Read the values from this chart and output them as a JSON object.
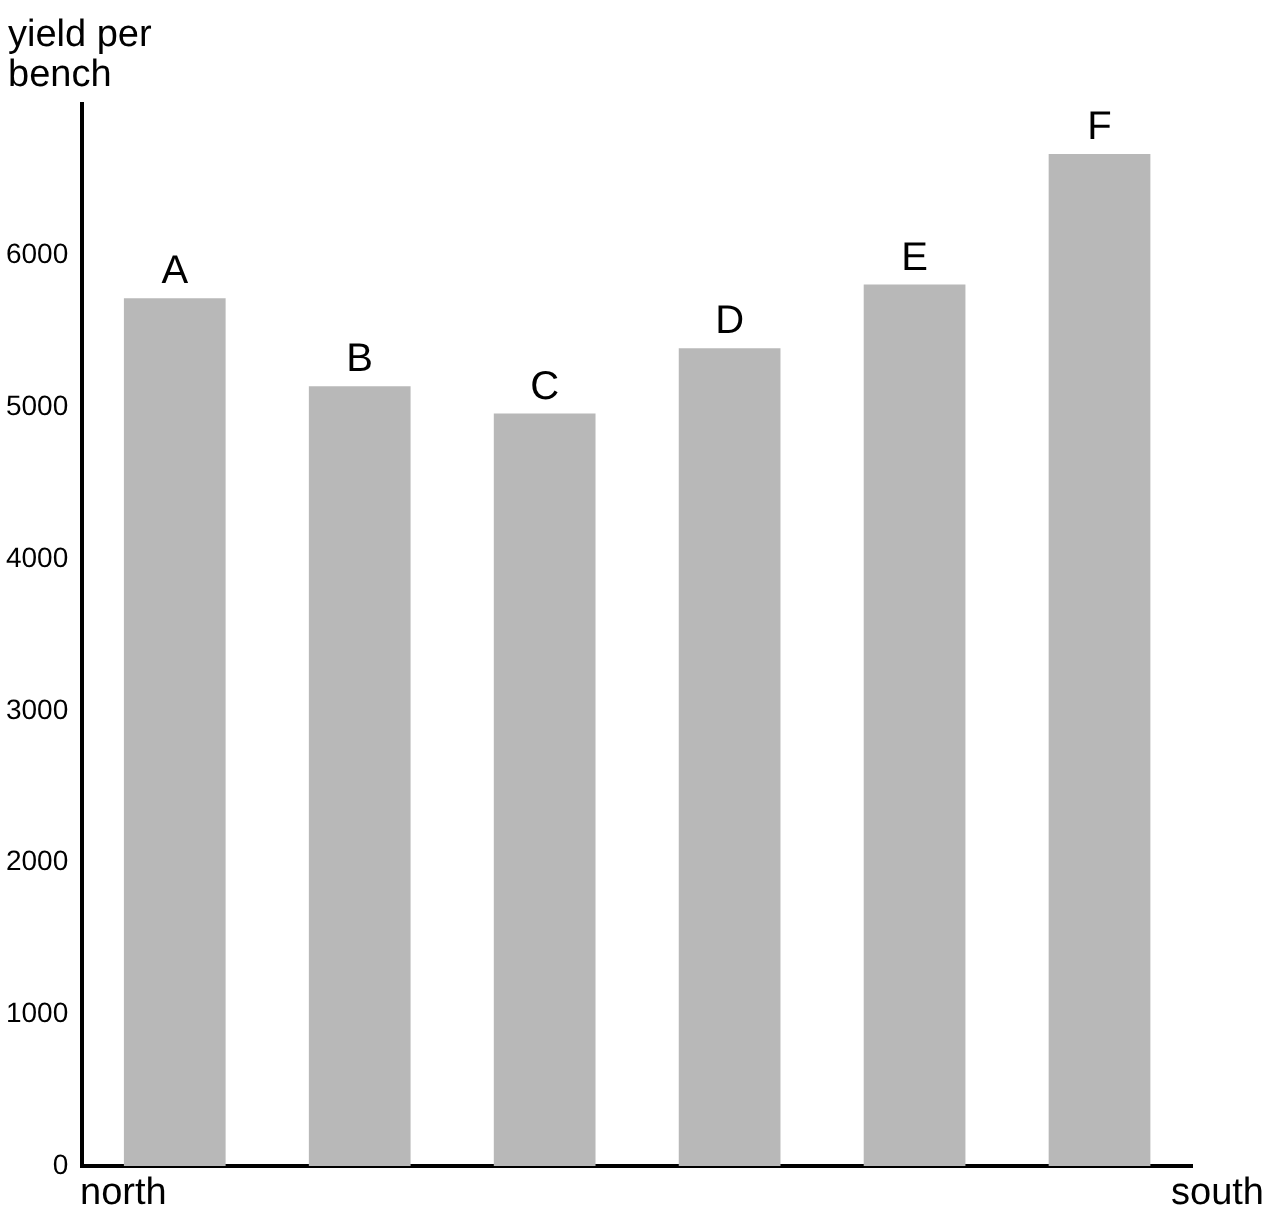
{
  "chart_data": {
    "type": "bar",
    "ylabel": "yield per bench",
    "categories": [
      "A",
      "B",
      "C",
      "D",
      "E",
      "F"
    ],
    "values": [
      5720,
      5140,
      4960,
      5390,
      5810,
      6670
    ],
    "color": "#b8b8b8",
    "ylim": [
      0,
      7000
    ],
    "yticks": [
      0,
      1000,
      2000,
      3000,
      4000,
      5000,
      6000
    ],
    "grid": false,
    "annotations": [
      "north",
      "south"
    ]
  }
}
